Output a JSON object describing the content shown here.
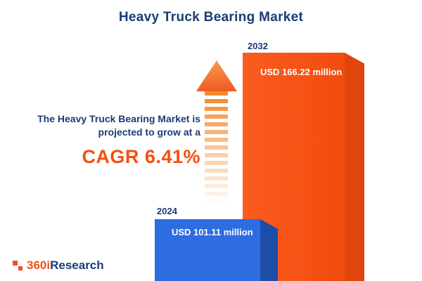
{
  "title": "Heavy Truck Bearing Market",
  "description": {
    "line1": "The Heavy Truck Bearing Market is",
    "line2": "projected to grow at a",
    "cagr": "CAGR 6.41%"
  },
  "chart_data": {
    "type": "bar",
    "title": "Heavy Truck Bearing Market",
    "categories": [
      "2024",
      "2032"
    ],
    "values": [
      101.11,
      166.22
    ],
    "unit": "USD million",
    "value_labels": [
      "USD 101.11 million",
      "USD 166.22 million"
    ],
    "bar_colors": [
      "#2e6ce1",
      "#f85315"
    ],
    "annotation": "CAGR 6.41%",
    "legend": "none",
    "grid": false
  },
  "logo": {
    "part1": "360i",
    "part2": "Research"
  },
  "colors": {
    "navy": "#1b3c74",
    "accent_orange": "#f4500f",
    "bar_blue_front": "#2e6ce1",
    "bar_blue_side": "#1d4da6",
    "bar_orange_front": "#f85315",
    "bar_orange_side": "#e0450c",
    "arrow_orange": "#f58a2e"
  }
}
